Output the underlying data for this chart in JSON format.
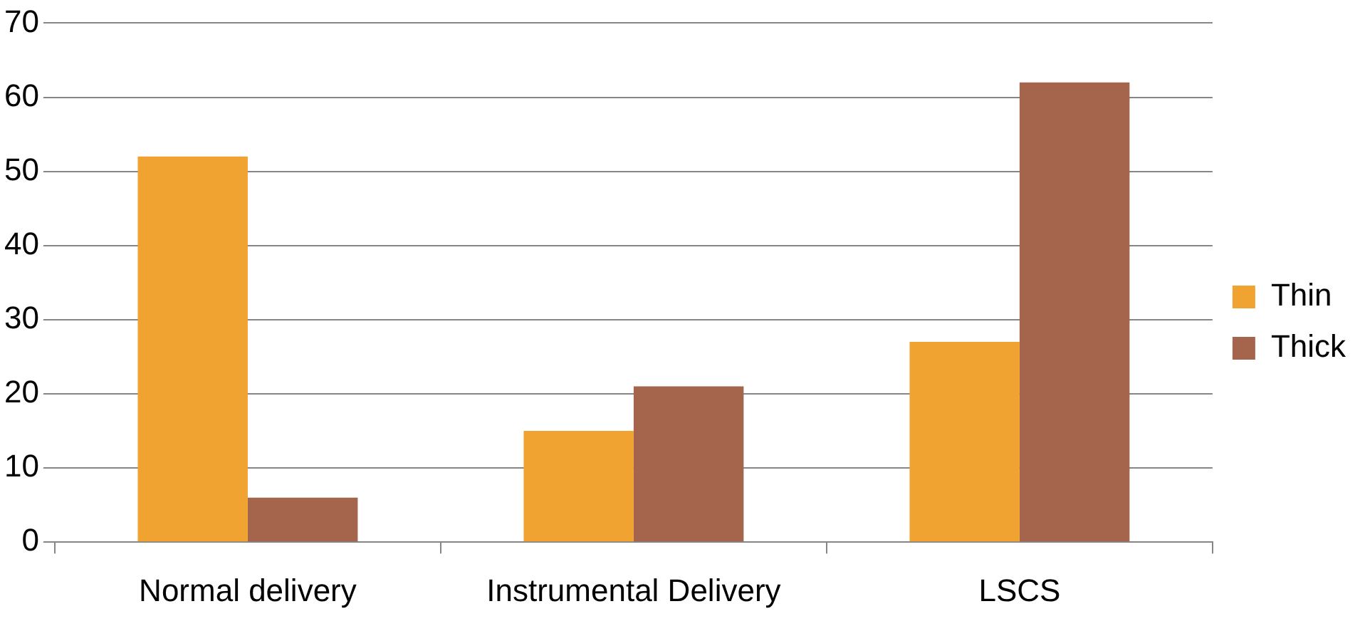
{
  "chart_data": {
    "type": "bar",
    "categories": [
      "Normal delivery",
      "Instrumental Delivery",
      "LSCS"
    ],
    "series": [
      {
        "name": "Thin",
        "color": "#f0a330",
        "values": [
          52,
          15,
          27
        ]
      },
      {
        "name": "Thick",
        "color": "#a5654d",
        "values": [
          6,
          21,
          62
        ]
      }
    ],
    "ylim": [
      0,
      70
    ],
    "yticks": [
      0,
      10,
      20,
      30,
      40,
      50,
      60,
      70
    ],
    "grid": "y",
    "legend": "right"
  }
}
